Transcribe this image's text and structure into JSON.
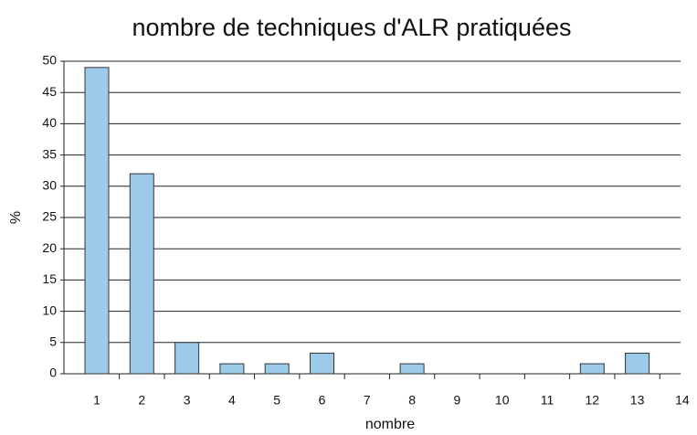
{
  "chart_data": {
    "type": "bar",
    "title": "nombre de techniques d'ALR pratiquées",
    "x_label": "nombre",
    "y_label": "%",
    "categories": [
      "1",
      "2",
      "3",
      "4",
      "5",
      "6",
      "7",
      "8",
      "9",
      "10",
      "11",
      "12",
      "13",
      "14"
    ],
    "values": [
      49,
      32,
      5,
      1.6,
      1.6,
      3.3,
      0,
      1.6,
      0,
      0,
      0,
      1.6,
      3.3,
      0
    ],
    "color": "#9ccbea",
    "ylim": [
      0,
      50
    ],
    "yticks": [
      0,
      5,
      10,
      15,
      20,
      25,
      30,
      35,
      40,
      45,
      50
    ],
    "grid": true
  }
}
